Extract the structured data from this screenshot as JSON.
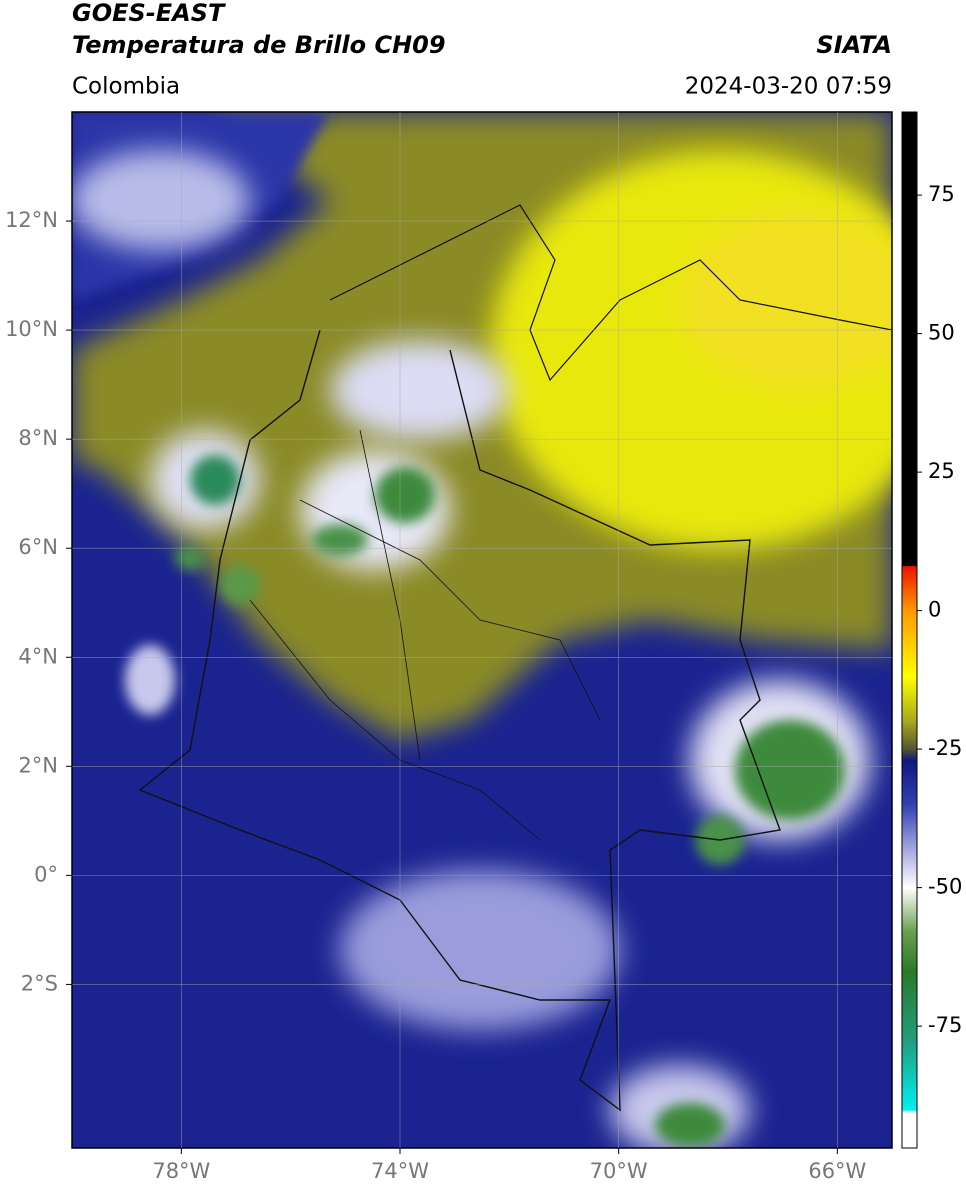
{
  "header": {
    "title": "GOES-EAST",
    "subtitle": "Temperatura de Brillo CH09",
    "source": "SIATA",
    "region": "Colombia",
    "datetime": "2024-03-20 07:59"
  },
  "map": {
    "type": "map",
    "xlim": [
      -80,
      -65
    ],
    "ylim": [
      -5,
      14
    ],
    "xticks": [
      {
        "value": -78,
        "label": "78°W"
      },
      {
        "value": -74,
        "label": "74°W"
      },
      {
        "value": -70,
        "label": "70°W"
      },
      {
        "value": -66,
        "label": "66°W"
      }
    ],
    "yticks": [
      {
        "value": 12,
        "label": "12°N"
      },
      {
        "value": 10,
        "label": "10°N"
      },
      {
        "value": 8,
        "label": "8°N"
      },
      {
        "value": 6,
        "label": "6°N"
      },
      {
        "value": 4,
        "label": "4°N"
      },
      {
        "value": 2,
        "label": "2°N"
      },
      {
        "value": 0,
        "label": "0°"
      },
      {
        "value": -2,
        "label": "2°S"
      }
    ],
    "grid": true,
    "colorbar": {
      "lim": [
        -97,
        90
      ],
      "ticks": [
        -75,
        -50,
        -25,
        0,
        25,
        50,
        75
      ]
    }
  }
}
